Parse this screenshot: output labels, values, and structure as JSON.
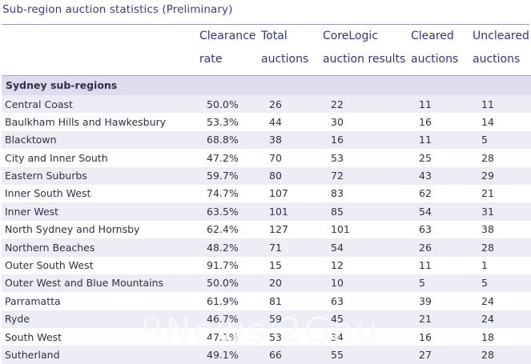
{
  "title": "Sub-region auction statistics (Preliminary)",
  "header": {
    "col1": [
      "Clearance",
      "rate"
    ],
    "col2": [
      "Total",
      "auctions"
    ],
    "col3": [
      "CoreLogic",
      "auction results"
    ],
    "col4": [
      "Cleared",
      "auctions"
    ],
    "col5": [
      "Uncleared",
      "auctions"
    ]
  },
  "section": "Sydney sub-regions",
  "rows": [
    {
      "name": "Central Coast",
      "rate": "50.0%",
      "total": "26",
      "results": "22",
      "cleared": "11",
      "uncleared": "11"
    },
    {
      "name": "Baulkham Hills and Hawkesbury",
      "rate": "53.3%",
      "total": "44",
      "results": "30",
      "cleared": "16",
      "uncleared": "14"
    },
    {
      "name": "Blacktown",
      "rate": "68.8%",
      "total": "38",
      "results": "16",
      "cleared": "11",
      "uncleared": "5"
    },
    {
      "name": "City and Inner South",
      "rate": "47.2%",
      "total": "70",
      "results": "53",
      "cleared": "25",
      "uncleared": "28"
    },
    {
      "name": "Eastern Suburbs",
      "rate": "59.7%",
      "total": "80",
      "results": "72",
      "cleared": "43",
      "uncleared": "29"
    },
    {
      "name": "Inner South West",
      "rate": "74.7%",
      "total": "107",
      "results": "83",
      "cleared": "62",
      "uncleared": "21"
    },
    {
      "name": "Inner West",
      "rate": "63.5%",
      "total": "101",
      "results": "85",
      "cleared": "54",
      "uncleared": "31"
    },
    {
      "name": "North Sydney and Hornsby",
      "rate": "62.4%",
      "total": "127",
      "results": "101",
      "cleared": "63",
      "uncleared": "38"
    },
    {
      "name": "Northern Beaches",
      "rate": "48.2%",
      "total": "71",
      "results": "54",
      "cleared": "26",
      "uncleared": "28"
    },
    {
      "name": "Outer South West",
      "rate": "91.7%",
      "total": "15",
      "results": "12",
      "cleared": "11",
      "uncleared": "1"
    },
    {
      "name": "Outer West and Blue Mountains",
      "rate": "50.0%",
      "total": "20",
      "results": "10",
      "cleared": "5",
      "uncleared": "5"
    },
    {
      "name": "Parramatta",
      "rate": "61.9%",
      "total": "81",
      "results": "63",
      "cleared": "39",
      "uncleared": "24"
    },
    {
      "name": "Ryde",
      "rate": "46.7%",
      "total": "59",
      "results": "45",
      "cleared": "21",
      "uncleared": "24"
    },
    {
      "name": "South West",
      "rate": "47.1%",
      "total": "53",
      "results": "34",
      "cleared": "16",
      "uncleared": "18"
    },
    {
      "name": "Sutherland",
      "rate": "49.1%",
      "total": "66",
      "results": "55",
      "cleared": "27",
      "uncleared": "28"
    }
  ],
  "watermark": "9News 2Gau",
  "colors": {
    "header_text": "#34347a",
    "section_bg": "#dcdcee",
    "stripe": "#ededf6"
  }
}
